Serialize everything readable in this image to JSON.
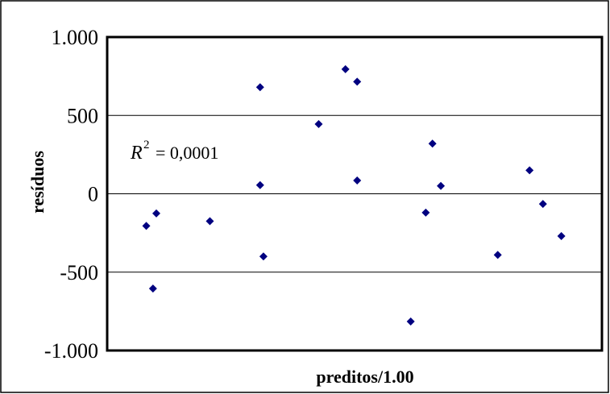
{
  "chart_data": {
    "type": "scatter",
    "title": "",
    "xlabel": "preditos/1.00",
    "ylabel": "resíduos",
    "ylim": [
      -1000,
      1000
    ],
    "xlim": [
      0,
      26
    ],
    "yticks": [
      1000,
      500,
      0,
      -500,
      -1000
    ],
    "ytick_labels": [
      "1.000",
      "500",
      "0",
      "-500",
      "-1.000"
    ],
    "grid": "horizontal",
    "annotation": {
      "r_symbol": "R",
      "r_exponent": "2",
      "value": "= 0,0001"
    },
    "marker_color": "#000080",
    "points": [
      {
        "x": 2.0,
        "y": -205
      },
      {
        "x": 2.4,
        "y": -605
      },
      {
        "x": 2.6,
        "y": -125
      },
      {
        "x": 5.8,
        "y": -175
      },
      {
        "x": 8.8,
        "y": 680
      },
      {
        "x": 8.8,
        "y": 55
      },
      {
        "x": 9.0,
        "y": -400
      },
      {
        "x": 12.3,
        "y": 445
      },
      {
        "x": 13.9,
        "y": 795
      },
      {
        "x": 14.6,
        "y": 715
      },
      {
        "x": 14.6,
        "y": 85
      },
      {
        "x": 17.8,
        "y": -815
      },
      {
        "x": 18.7,
        "y": -120
      },
      {
        "x": 19.1,
        "y": 320
      },
      {
        "x": 19.6,
        "y": 50
      },
      {
        "x": 23.0,
        "y": -390
      },
      {
        "x": 24.9,
        "y": 150
      },
      {
        "x": 25.7,
        "y": -65
      },
      {
        "x": 26.8,
        "y": -270
      }
    ]
  }
}
